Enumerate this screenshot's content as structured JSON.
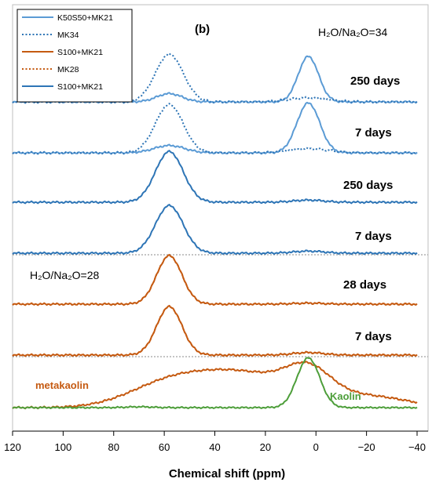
{
  "chart_data": {
    "type": "line",
    "panel_label": "(b)",
    "xlabel": "Chemical shift (ppm)",
    "x_axis": {
      "min": 120,
      "max": -40,
      "reversed": true,
      "ticks": [
        120,
        100,
        80,
        60,
        40,
        20,
        0,
        -20,
        -40
      ],
      "tick_labels": [
        "120",
        "100",
        "80",
        "60",
        "40",
        "20",
        "0",
        "−20",
        "−40"
      ]
    },
    "grid": false,
    "legend_position": "top-left",
    "legend": [
      {
        "label": "K50S50+MK21",
        "color": "#5b9bd5",
        "style": "solid"
      },
      {
        "label": "MK34",
        "color": "#2e75b6",
        "style": "dotted"
      },
      {
        "label": "S100+MK21",
        "color": "#c55a11",
        "style": "solid"
      },
      {
        "label": "MK28",
        "color": "#c55a11",
        "style": "dotted"
      },
      {
        "label": "S100+MK21",
        "color": "#2e75b6",
        "style": "solid"
      }
    ],
    "annotations": [
      {
        "id": "h2o-34",
        "text": "H₂O/Na₂O=34"
      },
      {
        "id": "h2o-28",
        "text": "H₂O/Na₂O=28"
      }
    ],
    "colors": {
      "light_blue": "#5b9bd5",
      "blue": "#2e75b6",
      "orange": "#c55a11",
      "green": "#4d9e3a",
      "separator": "#888888"
    },
    "traces": [
      {
        "group": "H2O/Na2O=34",
        "label": "250 days",
        "series": "K50S50+MK21",
        "color": "#5b9bd5",
        "style": "solid",
        "peaks": [
          {
            "center": 58,
            "height": 0.16,
            "width": 5
          },
          {
            "center": 3,
            "height": 0.88,
            "width": 4
          }
        ]
      },
      {
        "group": "H2O/Na2O=34",
        "label": "250 days",
        "series": "MK34",
        "color": "#2e75b6",
        "style": "dotted",
        "peaks": [
          {
            "center": 58,
            "height": 0.92,
            "width": 5.5
          },
          {
            "center": 3,
            "height": 0.08,
            "width": 8
          }
        ]
      },
      {
        "group": "H2O/Na2O=34",
        "label": "7 days",
        "series": "K50S50+MK21",
        "color": "#5b9bd5",
        "style": "solid",
        "peaks": [
          {
            "center": 58,
            "height": 0.14,
            "width": 6
          },
          {
            "center": 3,
            "height": 0.95,
            "width": 4.5
          }
        ]
      },
      {
        "group": "H2O/Na2O=34",
        "label": "7 days",
        "series": "MK34",
        "color": "#2e75b6",
        "style": "dotted",
        "peaks": [
          {
            "center": 58,
            "height": 0.92,
            "width": 5.5
          },
          {
            "center": 3,
            "height": 0.08,
            "width": 8
          }
        ]
      },
      {
        "group": "H2O/Na2O=34",
        "label": "250 days",
        "series": "S100+MK21",
        "color": "#2e75b6",
        "style": "solid",
        "peaks": [
          {
            "center": 58,
            "height": 0.95,
            "width": 5.5
          },
          {
            "center": 3,
            "height": 0.04,
            "width": 6
          }
        ]
      },
      {
        "group": "H2O/Na2O=34",
        "label": "7 days",
        "series": "S100+MK21",
        "color": "#2e75b6",
        "style": "solid",
        "peaks": [
          {
            "center": 58,
            "height": 0.92,
            "width": 5.5
          },
          {
            "center": 3,
            "height": 0.04,
            "width": 6
          }
        ]
      },
      {
        "group": "H2O/Na2O=28",
        "label": "28 days",
        "series": "S100+MK21",
        "color": "#c55a11",
        "style": "solid",
        "peaks": [
          {
            "center": 58,
            "height": 0.95,
            "width": 5
          },
          {
            "center": 3,
            "height": 0.02,
            "width": 6
          }
        ]
      },
      {
        "group": "H2O/Na2O=28",
        "label": "28 days",
        "series": "MK28",
        "color": "#c55a11",
        "style": "dotted",
        "peaks": [
          {
            "center": 58,
            "height": 0.95,
            "width": 5
          },
          {
            "center": 3,
            "height": 0.02,
            "width": 6
          }
        ]
      },
      {
        "group": "H2O/Na2O=28",
        "label": "7 days",
        "series": "S100+MK21",
        "color": "#c55a11",
        "style": "solid",
        "peaks": [
          {
            "center": 58,
            "height": 0.95,
            "width": 5
          },
          {
            "center": 3,
            "height": 0.05,
            "width": 6
          }
        ]
      },
      {
        "group": "H2O/Na2O=28",
        "label": "7 days",
        "series": "MK28",
        "color": "#c55a11",
        "style": "dotted",
        "peaks": [
          {
            "center": 58,
            "height": 0.95,
            "width": 5
          },
          {
            "center": 3,
            "height": 0.05,
            "width": 6
          }
        ]
      },
      {
        "group": "reference",
        "label": "metakaolin",
        "series": "metakaolin",
        "color": "#c55a11",
        "style": "solid",
        "peaks": [
          {
            "center": 58,
            "height": 0.45,
            "width": 16
          },
          {
            "center": 28,
            "height": 0.62,
            "width": 18
          },
          {
            "center": 3,
            "height": 0.55,
            "width": 9
          },
          {
            "center": -20,
            "height": 0.22,
            "width": 16
          }
        ]
      },
      {
        "group": "reference",
        "label": "Kaolin",
        "series": "Kaolin",
        "color": "#4d9e3a",
        "style": "solid",
        "peaks": [
          {
            "center": 3,
            "height": 1.22,
            "width": 4.5
          },
          {
            "center": 70,
            "height": 0.02,
            "width": 5
          }
        ]
      }
    ]
  }
}
